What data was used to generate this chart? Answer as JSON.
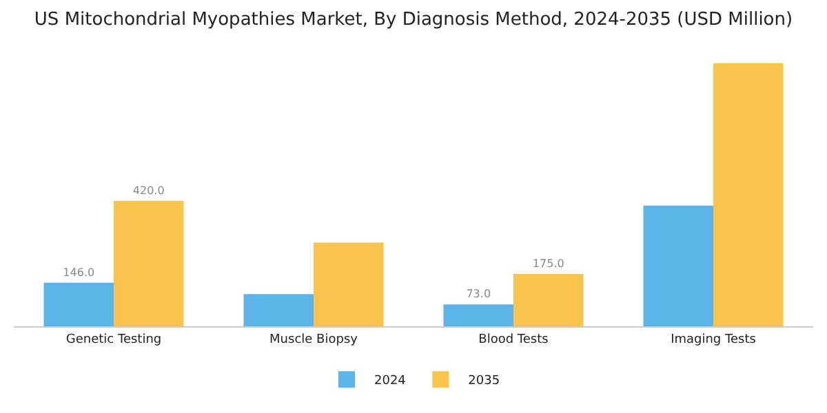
{
  "chart_data": {
    "type": "bar",
    "title": "US Mitochondrial Myopathies Market, By Diagnosis Method, 2024-2035 (USD Million)",
    "categories": [
      "Genetic Testing",
      "Muscle Biopsy",
      "Blood Tests",
      "Imaging Tests"
    ],
    "series": [
      {
        "name": "2024",
        "color": "#5db4e8",
        "values": [
          146,
          108,
          73,
          404
        ],
        "value_labels": [
          "146.0",
          null,
          "73.0",
          null
        ]
      },
      {
        "name": "2035",
        "color": "#f9c44c",
        "values": [
          420,
          280,
          175,
          880
        ],
        "value_labels": [
          "420.0",
          null,
          "175.0",
          null
        ]
      }
    ],
    "legend": "bottom",
    "grid": false
  }
}
